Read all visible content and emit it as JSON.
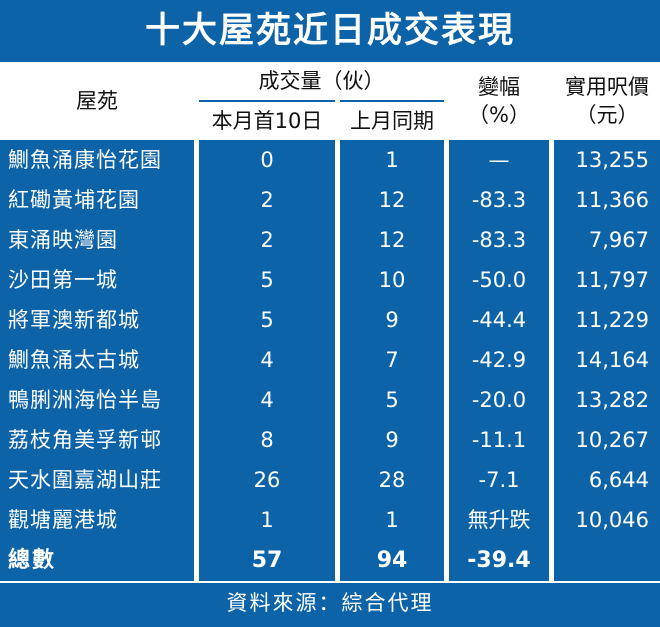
{
  "title": "十大屋苑近日成交表現",
  "headers": {
    "estate": "屋苑",
    "volume": "成交量（伙）",
    "this_month": "本月首10日",
    "last_month": "上月同期",
    "change": "變幅",
    "change_unit": "（%）",
    "price": "實用呎價",
    "price_unit": "（元）"
  },
  "rows": [
    {
      "estate": "鰂魚涌康怡花園",
      "this_month": "0",
      "last_month": "1",
      "change": "—",
      "price": "13,255"
    },
    {
      "estate": "紅磡黃埔花園",
      "this_month": "2",
      "last_month": "12",
      "change": "-83.3",
      "price": "11,366"
    },
    {
      "estate": "東涌映灣園",
      "this_month": "2",
      "last_month": "12",
      "change": "-83.3",
      "price": "7,967"
    },
    {
      "estate": "沙田第一城",
      "this_month": "5",
      "last_month": "10",
      "change": "-50.0",
      "price": "11,797"
    },
    {
      "estate": "將軍澳新都城",
      "this_month": "5",
      "last_month": "9",
      "change": "-44.4",
      "price": "11,229"
    },
    {
      "estate": "鰂魚涌太古城",
      "this_month": "4",
      "last_month": "7",
      "change": "-42.9",
      "price": "14,164"
    },
    {
      "estate": "鴨脷洲海怡半島",
      "this_month": "4",
      "last_month": "5",
      "change": "-20.0",
      "price": "13,282"
    },
    {
      "estate": "荔枝角美孚新邨",
      "this_month": "8",
      "last_month": "9",
      "change": "-11.1",
      "price": "10,267"
    },
    {
      "estate": "天水圍嘉湖山莊",
      "this_month": "26",
      "last_month": "28",
      "change": "-7.1",
      "price": "6,644"
    },
    {
      "estate": "觀塘麗港城",
      "this_month": "1",
      "last_month": "1",
      "change": "無升跌",
      "price": "10,046"
    }
  ],
  "total": {
    "label": "總數",
    "this_month": "57",
    "last_month": "94",
    "change": "-39.4"
  },
  "source": "資料來源：綜合代理",
  "colors": {
    "background": "#0d63a8",
    "header": "#ffffff",
    "text": "#ffffff"
  }
}
